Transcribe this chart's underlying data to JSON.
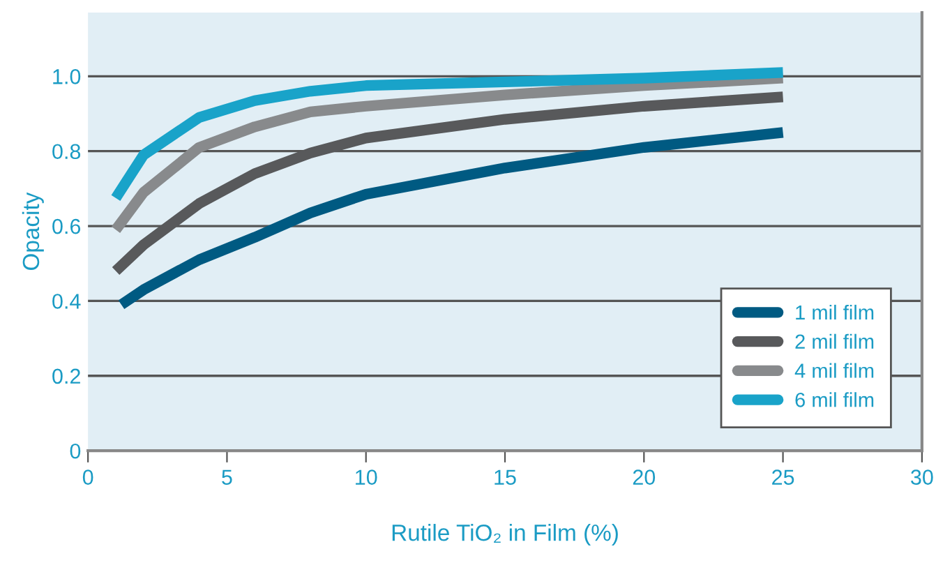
{
  "chart_data": {
    "type": "line",
    "xlabel": "Rutile TiO₂ in Film (%)",
    "ylabel": "Opacity",
    "xlim": [
      0,
      30
    ],
    "xticks": [
      0,
      5,
      10,
      15,
      20,
      25,
      30
    ],
    "ylim": [
      0,
      1.17
    ],
    "yticks": [
      0,
      0.2,
      0.4,
      0.6,
      0.8,
      {
        "value": 1.0,
        "label": "1.0"
      }
    ],
    "grid": "y",
    "legend": "bottom right",
    "marker": "none",
    "line_style": "solid",
    "series": [
      {
        "name": "1 mil film",
        "color": "#005a82",
        "x": [
          1.2,
          2,
          4,
          6,
          8,
          10,
          15,
          20,
          25
        ],
        "values": [
          0.39,
          0.43,
          0.51,
          0.57,
          0.635,
          0.685,
          0.755,
          0.81,
          0.85
        ]
      },
      {
        "name": "2 mil film",
        "color": "#58595b",
        "x": [
          1,
          2,
          4,
          6,
          8,
          10,
          15,
          20,
          25
        ],
        "values": [
          0.48,
          0.55,
          0.66,
          0.74,
          0.795,
          0.835,
          0.885,
          0.92,
          0.945
        ]
      },
      {
        "name": "4 mil film",
        "color": "#888a8c",
        "x": [
          1,
          2,
          4,
          6,
          8,
          10,
          15,
          20,
          25
        ],
        "values": [
          0.59,
          0.69,
          0.81,
          0.865,
          0.905,
          0.92,
          0.95,
          0.975,
          0.995
        ]
      },
      {
        "name": "6 mil film",
        "color": "#19a3c9",
        "x": [
          1,
          2,
          4,
          6,
          8,
          10,
          15,
          20,
          25
        ],
        "values": [
          0.675,
          0.79,
          0.89,
          0.935,
          0.96,
          0.975,
          0.985,
          0.995,
          1.01
        ]
      }
    ]
  }
}
